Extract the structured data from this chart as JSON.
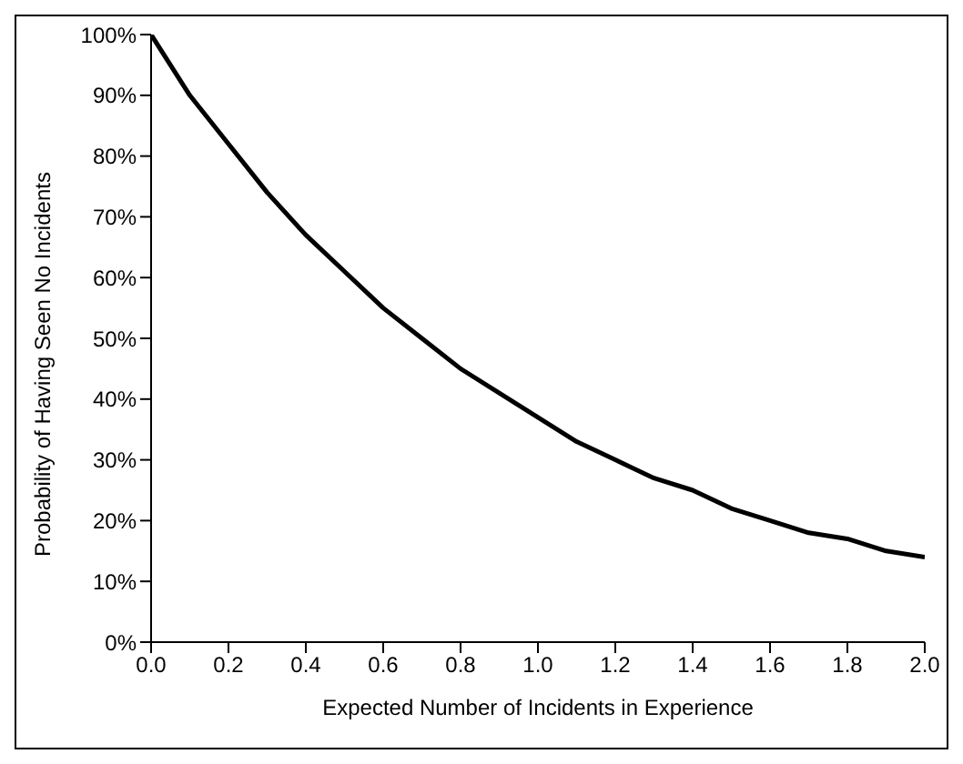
{
  "chart_data": {
    "type": "line",
    "xlabel": "Expected Number of Incidents in Experience",
    "ylabel": "Probability of Having Seen No Incidents",
    "x": [
      0,
      0.1,
      0.2,
      0.3,
      0.4,
      0.5,
      0.6,
      0.7,
      0.8,
      0.9,
      1.0,
      1.1,
      1.2,
      1.3,
      1.4,
      1.5,
      1.6,
      1.7,
      1.8,
      1.9,
      2.0
    ],
    "series": [
      {
        "color": "#000000",
        "values": [
          100,
          90,
          82,
          74,
          67,
          61,
          55,
          50,
          45,
          41,
          37,
          33,
          30,
          27,
          25,
          22,
          20,
          18,
          17,
          15,
          14
        ]
      }
    ],
    "xlim": [
      0,
      2
    ],
    "ylim": [
      0,
      100
    ],
    "xticks": [
      {
        "value": 0,
        "label": "0.0"
      },
      {
        "value": 0.2,
        "label": "0.2"
      },
      {
        "value": 0.4,
        "label": "0.4"
      },
      {
        "value": 0.6,
        "label": "0.6"
      },
      {
        "value": 0.8,
        "label": "0.8"
      },
      {
        "value": 1,
        "label": "1.0"
      },
      {
        "value": 1.2,
        "label": "1.2"
      },
      {
        "value": 1.4,
        "label": "1.4"
      },
      {
        "value": 1.6,
        "label": "1.6"
      },
      {
        "value": 1.8,
        "label": "1.8"
      },
      {
        "value": 2,
        "label": "2.0"
      }
    ],
    "yticks": [
      {
        "value": 0,
        "label": "0%"
      },
      {
        "value": 10,
        "label": "10%"
      },
      {
        "value": 20,
        "label": "20%"
      },
      {
        "value": 30,
        "label": "30%"
      },
      {
        "value": 40,
        "label": "40%"
      },
      {
        "value": 50,
        "label": "50%"
      },
      {
        "value": 60,
        "label": "60%"
      },
      {
        "value": 70,
        "label": "70%"
      },
      {
        "value": 80,
        "label": "80%"
      },
      {
        "value": 90,
        "label": "90%"
      },
      {
        "value": 100,
        "label": "100%"
      }
    ],
    "marker": "none",
    "line_style": "solid"
  }
}
